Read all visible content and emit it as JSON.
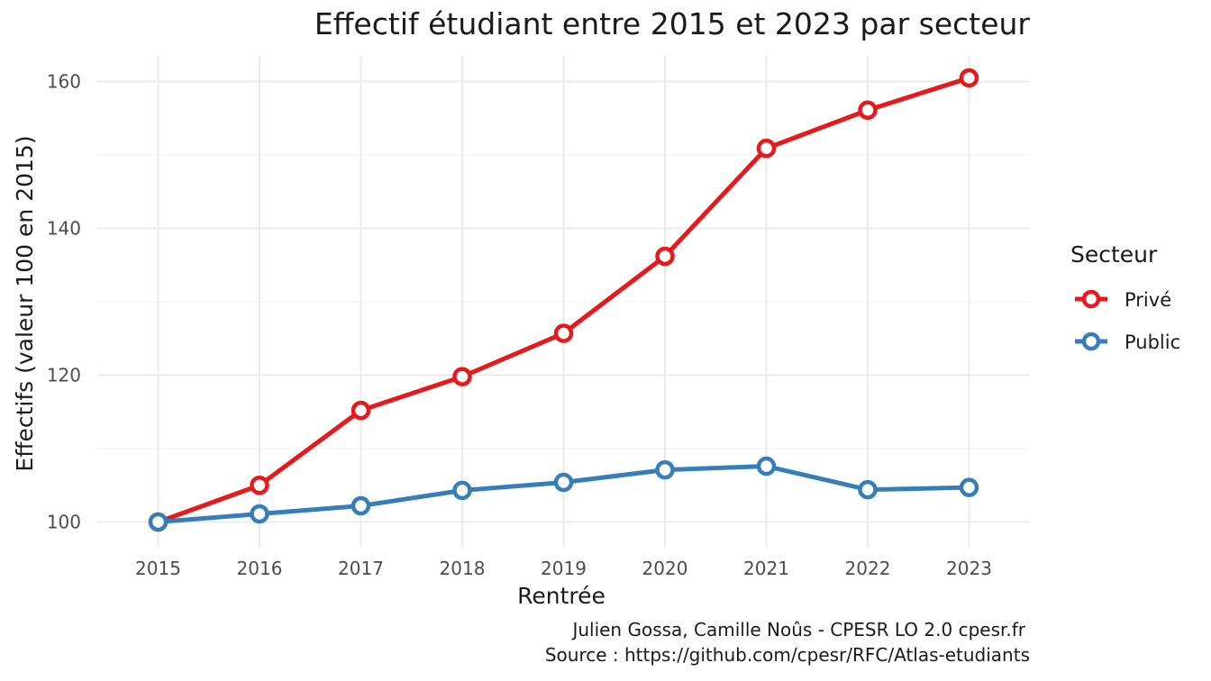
{
  "chart_data": {
    "type": "line",
    "title": "Effectif étudiant entre 2015 et 2023 par secteur",
    "xlabel": "Rentrée",
    "ylabel": "Effectifs (valeur 100 en 2015)",
    "x": [
      2015,
      2016,
      2017,
      2018,
      2019,
      2020,
      2021,
      2022,
      2023
    ],
    "x_tick_labels": [
      "2015",
      "2016",
      "2017",
      "2018",
      "2019",
      "2020",
      "2021",
      "2022",
      "2023"
    ],
    "y_ticks": [
      100,
      120,
      140,
      160
    ],
    "y_tick_labels": [
      "100",
      "120",
      "140",
      "160"
    ],
    "xlim": [
      2014.4,
      2023.6
    ],
    "ylim": [
      96.5,
      163.5
    ],
    "grid": true,
    "legend": {
      "title": "Secteur",
      "placement": "right"
    },
    "series": [
      {
        "name": "Privé",
        "color": "#e41a1c",
        "values": [
          100,
          105.0,
          115.2,
          119.8,
          125.7,
          136.2,
          150.9,
          156.1,
          160.5
        ]
      },
      {
        "name": "Public",
        "color": "#377eb8",
        "values": [
          100,
          101.1,
          102.2,
          104.3,
          105.4,
          107.1,
          107.6,
          104.4,
          104.7
        ]
      }
    ],
    "caption": [
      "Julien Gossa, Camille Noûs - CPESR LO 2.0 cpesr.fr",
      "Source : https://github.com/cpesr/RFC/Atlas-etudiants"
    ]
  }
}
